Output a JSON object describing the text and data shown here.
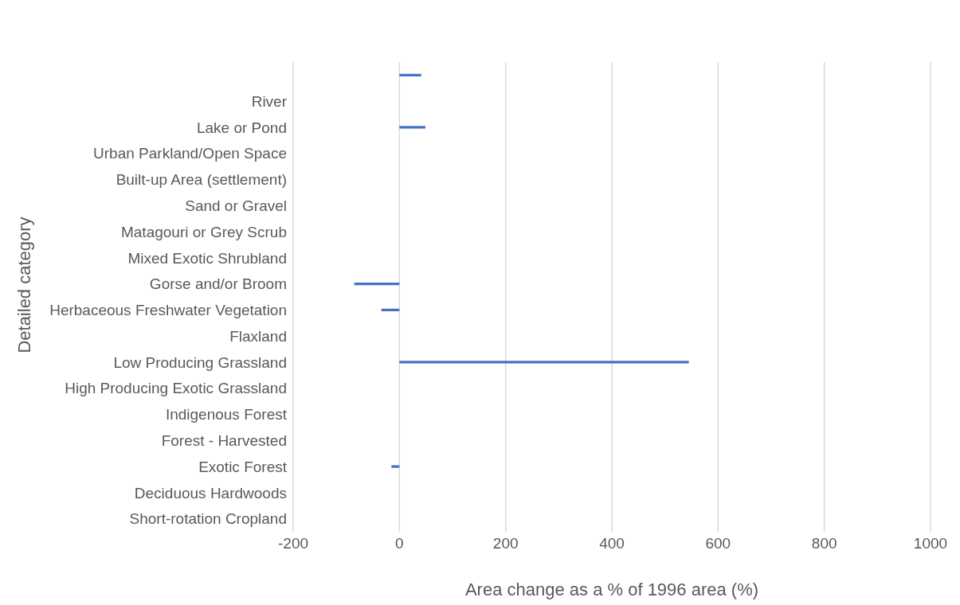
{
  "chart_data": {
    "type": "bar",
    "orientation": "horizontal",
    "xlabel": "Area change as a % of 1996 area (%)",
    "ylabel": "Detailed category",
    "categories": [
      null,
      "River",
      "Lake or Pond",
      "Urban Parkland/Open Space",
      "Built-up Area (settlement)",
      "Sand or Gravel",
      "Matagouri or Grey Scrub",
      "Mixed Exotic Shrubland",
      "Gorse and/or Broom",
      "Herbaceous Freshwater Vegetation",
      "Flaxland",
      "Low Producing Grassland",
      "High Producing Exotic Grassland",
      "Indigenous Forest",
      "Forest - Harvested",
      "Exotic Forest",
      "Deciduous Hardwoods",
      "Short-rotation Cropland"
    ],
    "values": [
      41,
      null,
      49,
      null,
      null,
      null,
      null,
      null,
      -85,
      -34,
      null,
      545,
      null,
      null,
      null,
      -15,
      null,
      null
    ],
    "color": "#4472c4",
    "xlim": [
      -200,
      1000
    ],
    "xticks": [
      -200,
      0,
      200,
      400,
      600,
      800,
      1000
    ],
    "grid": "x"
  }
}
